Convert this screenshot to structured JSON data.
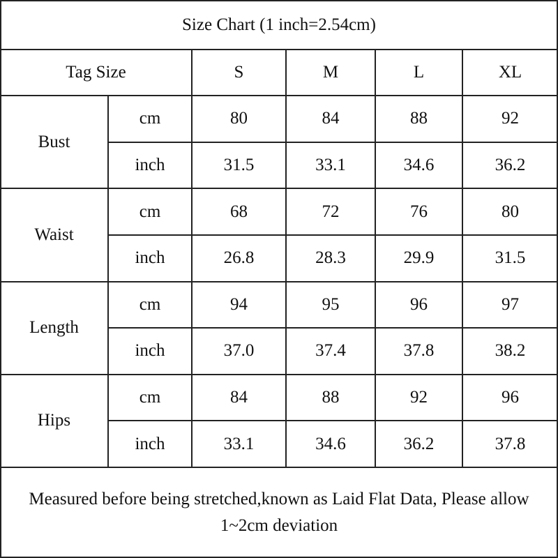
{
  "title": "Size Chart (1 inch=2.54cm)",
  "header": {
    "label": "Tag Size",
    "sizes": [
      "S",
      "M",
      "L",
      "XL"
    ]
  },
  "groups": [
    {
      "name": "Bust",
      "rows": [
        {
          "unit": "cm",
          "values": [
            "80",
            "84",
            "88",
            "92"
          ]
        },
        {
          "unit": "inch",
          "values": [
            "31.5",
            "33.1",
            "34.6",
            "36.2"
          ]
        }
      ]
    },
    {
      "name": "Waist",
      "rows": [
        {
          "unit": "cm",
          "values": [
            "68",
            "72",
            "76",
            "80"
          ]
        },
        {
          "unit": "inch",
          "values": [
            "26.8",
            "28.3",
            "29.9",
            "31.5"
          ]
        }
      ]
    },
    {
      "name": "Length",
      "rows": [
        {
          "unit": "cm",
          "values": [
            "94",
            "95",
            "96",
            "97"
          ]
        },
        {
          "unit": "inch",
          "values": [
            "37.0",
            "37.4",
            "37.8",
            "38.2"
          ]
        }
      ]
    },
    {
      "name": "Hips",
      "rows": [
        {
          "unit": "cm",
          "values": [
            "84",
            "88",
            "92",
            "96"
          ]
        },
        {
          "unit": "inch",
          "values": [
            "33.1",
            "34.6",
            "36.2",
            "37.8"
          ]
        }
      ]
    }
  ],
  "note": "Measured before being stretched,known as Laid Flat Data, Please allow 1~2cm deviation"
}
